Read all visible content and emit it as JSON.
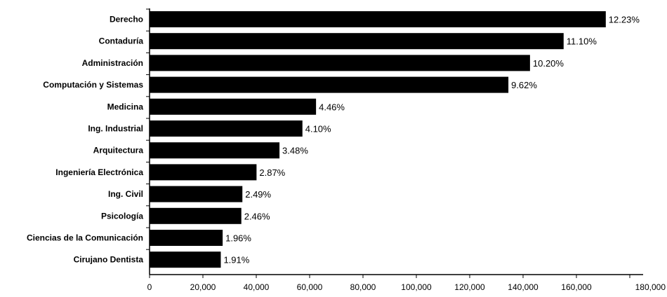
{
  "chart_data": {
    "type": "bar",
    "orientation": "horizontal",
    "categories": [
      "Derecho",
      "Contaduría",
      "Administración",
      "Computación y Sistemas",
      "Medicina",
      "Ing. Industrial",
      "Arquitectura",
      "Ingeniería Electrónica",
      "Ing. Civil",
      "Psicología",
      "Ciencias de la Comunicación",
      "Cirujano Dentista"
    ],
    "values": [
      171000,
      155200,
      142600,
      134500,
      62400,
      57300,
      48700,
      40100,
      34800,
      34400,
      27400,
      26700
    ],
    "data_labels": [
      "12.23%",
      "11.10%",
      "10.20%",
      "9.62%",
      "4.46%",
      "4.10%",
      "3.48%",
      "2.87%",
      "2.49%",
      "2.46%",
      "1.96%",
      "1.91%"
    ],
    "xlim": [
      0,
      180000
    ],
    "x_ticks": [
      "0",
      "20,000",
      "40,000",
      "60,000",
      "80,000",
      "100,000",
      "120,000",
      "140,000",
      "160,000",
      "180,000"
    ],
    "grid": false,
    "bar_color": "#000000"
  }
}
